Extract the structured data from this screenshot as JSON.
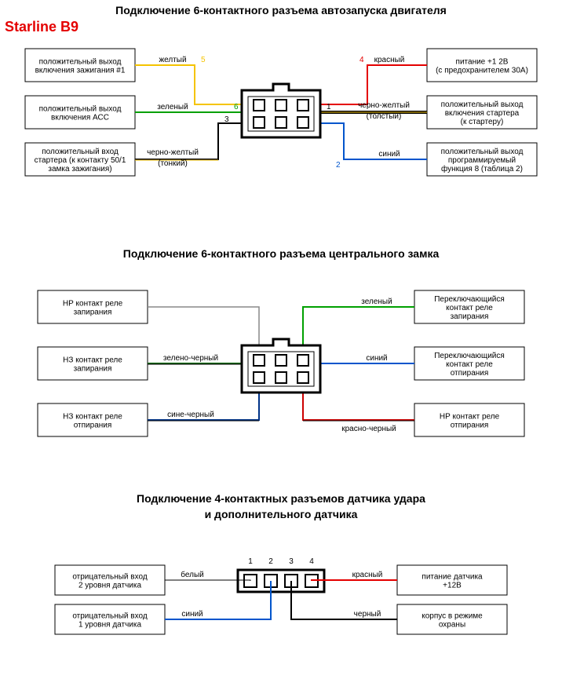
{
  "brand": "Starline B9",
  "sections": [
    {
      "title": "Подключение 6-контактного разъема автозапуска двигателя",
      "left": [
        {
          "lines": [
            "положительный выход",
            "включения зажигания #1"
          ]
        },
        {
          "lines": [
            "положительный выход",
            "включения АСС"
          ]
        },
        {
          "lines": [
            "положительный вход",
            "стартера (к контакту 50/1",
            "замка зажигания)"
          ]
        }
      ],
      "right": [
        {
          "lines": [
            "питание +1 2В",
            "(с предохранителем 30А)"
          ]
        },
        {
          "lines": [
            "положительный выход",
            "включения стартера",
            "(к стартеру)"
          ]
        },
        {
          "lines": [
            "положительный выход",
            "программируемый",
            "функция 8 (таблица 2)"
          ]
        }
      ],
      "wires": {
        "leftTop": {
          "label": "желтый",
          "color": "#f5c400",
          "pin": "5"
        },
        "leftMid": {
          "label": "зеленый",
          "color": "#00a000",
          "pin": "6"
        },
        "leftBot": {
          "label": "черно-желтый",
          "sub": "(тонкий)",
          "color": "#000000",
          "pin": "3"
        },
        "rightTop": {
          "label": "красный",
          "color": "#e40000",
          "pin": "4"
        },
        "rightMid": {
          "label": "черно-желтый",
          "sub": "(толстый)",
          "color": "#000000",
          "pin": "1"
        },
        "rightBot": {
          "label": "синий",
          "color": "#0055cc",
          "pin": "2"
        }
      }
    },
    {
      "title": "Подключение 6-контактного разъема центрального замка",
      "left": [
        {
          "lines": [
            "НР контакт реле",
            "запирания"
          ]
        },
        {
          "lines": [
            "НЗ контакт реле",
            "запирания"
          ]
        },
        {
          "lines": [
            "НЗ контакт реле",
            "отпирания"
          ]
        }
      ],
      "right": [
        {
          "lines": [
            "Переключающийся",
            "контакт реле",
            "запирания"
          ]
        },
        {
          "lines": [
            "Переключающийся",
            "контакт реле",
            "отпирания"
          ]
        },
        {
          "lines": [
            "НР контакт реле",
            "отпирания"
          ]
        }
      ],
      "wires": {
        "leftTop": {
          "label": "",
          "color": "#888"
        },
        "leftMid": {
          "label": "зелено-черный",
          "color": "#006600"
        },
        "leftBot": {
          "label": "сине-черный",
          "color": "#003388"
        },
        "rightTop": {
          "label": "зеленый",
          "color": "#00a000"
        },
        "rightMid": {
          "label": "синий",
          "color": "#0055cc"
        },
        "rightBot": {
          "label": "красно-черный",
          "color": "#cc0000"
        }
      }
    },
    {
      "title1": "Подключение 4-контактных разъемов датчика удара",
      "title2": "и дополнительного датчика",
      "left": [
        {
          "lines": [
            "отрицательный вход",
            "2 уровня датчика"
          ]
        },
        {
          "lines": [
            "отрицательный вход",
            "1 уровня датчика"
          ]
        }
      ],
      "right": [
        {
          "lines": [
            "питание датчика",
            "+12В"
          ]
        },
        {
          "lines": [
            "корпус в режиме",
            "охраны"
          ]
        }
      ],
      "wires": {
        "leftTop": {
          "label": "белый",
          "color": "#000"
        },
        "leftBot": {
          "label": "синий",
          "color": "#0055cc"
        },
        "rightTop": {
          "label": "красный",
          "color": "#e40000"
        },
        "rightBot": {
          "label": "черный",
          "color": "#000"
        }
      },
      "pins": [
        "1",
        "2",
        "3",
        "4"
      ]
    }
  ],
  "layout": {
    "boxW": 140,
    "boxH": 40,
    "lineGap": 12,
    "wireStroke": 2
  }
}
